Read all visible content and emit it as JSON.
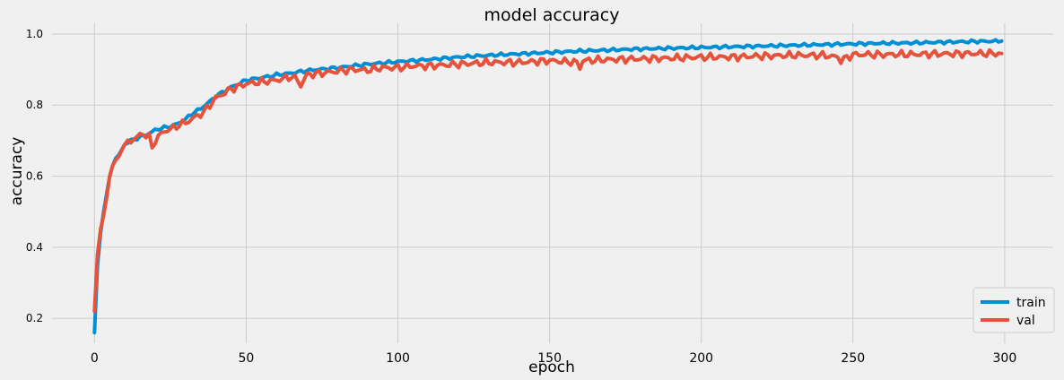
{
  "chart_data": {
    "type": "line",
    "title": "model accuracy",
    "xlabel": "epoch",
    "ylabel": "accuracy",
    "xlim": [
      -14,
      316
    ],
    "ylim": [
      0.13,
      1.03
    ],
    "xticks": [
      0,
      50,
      100,
      150,
      200,
      250,
      300
    ],
    "yticks": [
      0.2,
      0.4,
      0.6,
      0.8,
      1.0
    ],
    "ytick_labels": [
      "0.2",
      "0.4",
      "0.6",
      "0.8",
      "1.0"
    ],
    "grid": true,
    "legend_position": "bottom-right",
    "series": [
      {
        "name": "train",
        "color": "#008fd5",
        "x": [
          0,
          1,
          2,
          3,
          4,
          5,
          6,
          7,
          8,
          10,
          12,
          15,
          18,
          20,
          22,
          25,
          28,
          30,
          32,
          35,
          38,
          40,
          45,
          50,
          55,
          60,
          65,
          70,
          80,
          90,
          100,
          110,
          120,
          130,
          140,
          150,
          160,
          170,
          180,
          190,
          200,
          210,
          220,
          230,
          240,
          250,
          260,
          270,
          280,
          290,
          299
        ],
        "y": [
          0.16,
          0.35,
          0.44,
          0.5,
          0.55,
          0.6,
          0.63,
          0.65,
          0.66,
          0.69,
          0.7,
          0.71,
          0.72,
          0.73,
          0.735,
          0.74,
          0.75,
          0.76,
          0.775,
          0.79,
          0.81,
          0.825,
          0.85,
          0.87,
          0.877,
          0.885,
          0.89,
          0.897,
          0.905,
          0.915,
          0.922,
          0.928,
          0.935,
          0.94,
          0.944,
          0.948,
          0.952,
          0.955,
          0.958,
          0.96,
          0.962,
          0.964,
          0.966,
          0.968,
          0.97,
          0.972,
          0.974,
          0.975,
          0.977,
          0.979,
          0.98
        ]
      },
      {
        "name": "val",
        "color": "#e5533d",
        "x": [
          0,
          1,
          2,
          3,
          4,
          5,
          6,
          7,
          8,
          10,
          12,
          14,
          16,
          18,
          19,
          20,
          22,
          24,
          26,
          28,
          30,
          32,
          34,
          36,
          38,
          40,
          45,
          50,
          55,
          60,
          65,
          67,
          68,
          70,
          75,
          80,
          85,
          90,
          95,
          100,
          105,
          110,
          120,
          130,
          140,
          150,
          159,
          160,
          161,
          170,
          180,
          190,
          200,
          210,
          220,
          230,
          240,
          245,
          246,
          250,
          260,
          270,
          280,
          290,
          299
        ],
        "y": [
          0.22,
          0.38,
          0.45,
          0.49,
          0.54,
          0.6,
          0.63,
          0.645,
          0.655,
          0.69,
          0.7,
          0.71,
          0.72,
          0.71,
          0.68,
          0.7,
          0.72,
          0.73,
          0.735,
          0.745,
          0.75,
          0.76,
          0.77,
          0.78,
          0.8,
          0.82,
          0.845,
          0.86,
          0.865,
          0.87,
          0.88,
          0.87,
          0.855,
          0.885,
          0.89,
          0.895,
          0.9,
          0.898,
          0.905,
          0.905,
          0.91,
          0.91,
          0.915,
          0.92,
          0.92,
          0.925,
          0.92,
          0.905,
          0.925,
          0.928,
          0.93,
          0.932,
          0.935,
          0.935,
          0.938,
          0.94,
          0.94,
          0.935,
          0.925,
          0.942,
          0.942,
          0.943,
          0.944,
          0.945,
          0.945
        ]
      }
    ]
  }
}
